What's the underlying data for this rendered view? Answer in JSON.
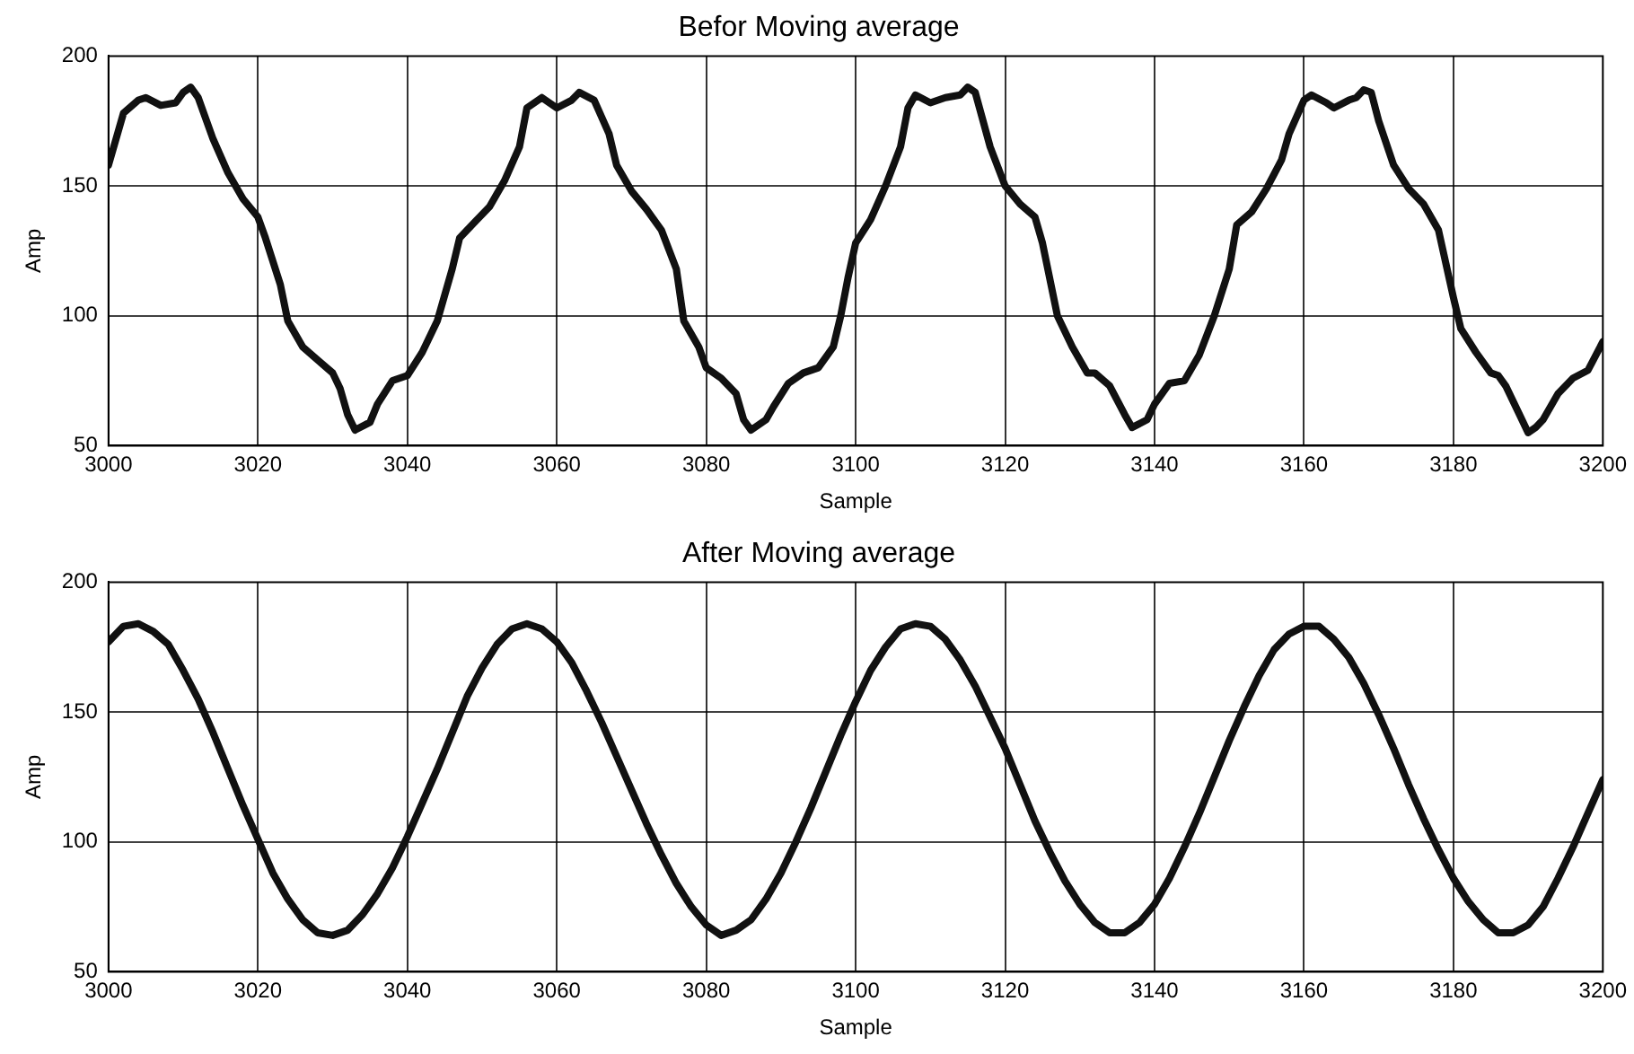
{
  "chart_data": [
    {
      "type": "line",
      "title": "Befor Moving average",
      "xlabel": "Sample",
      "ylabel": "Amp",
      "color": "#111111",
      "marker": "none",
      "line_style": "solid",
      "grid": true,
      "legend": false,
      "xlim": [
        3000,
        3200
      ],
      "xticks": [
        3000,
        3020,
        3040,
        3060,
        3080,
        3100,
        3120,
        3140,
        3160,
        3180,
        3200
      ],
      "ylim": [
        50,
        200
      ],
      "yticks": [
        50,
        100,
        150,
        200
      ],
      "x": [
        3000,
        3002,
        3004,
        3005,
        3007,
        3009,
        3010,
        3011,
        3012,
        3014,
        3016,
        3018,
        3020,
        3021,
        3023,
        3024,
        3026,
        3028,
        3030,
        3031,
        3032,
        3033,
        3035,
        3036,
        3038,
        3040,
        3042,
        3044,
        3046,
        3047,
        3049,
        3051,
        3053,
        3055,
        3056,
        3058,
        3060,
        3062,
        3063,
        3065,
        3067,
        3068,
        3070,
        3072,
        3074,
        3076,
        3077,
        3079,
        3080,
        3082,
        3084,
        3085,
        3086,
        3088,
        3089,
        3091,
        3093,
        3095,
        3097,
        3098,
        3099,
        3100,
        3102,
        3104,
        3106,
        3107,
        3108,
        3110,
        3112,
        3114,
        3115,
        3116,
        3118,
        3120,
        3122,
        3124,
        3125,
        3127,
        3129,
        3131,
        3132,
        3134,
        3136,
        3137,
        3139,
        3140,
        3142,
        3144,
        3146,
        3148,
        3150,
        3151,
        3153,
        3155,
        3157,
        3158,
        3160,
        3161,
        3163,
        3164,
        3166,
        3167,
        3168,
        3169,
        3170,
        3172,
        3174,
        3176,
        3178,
        3180,
        3181,
        3183,
        3185,
        3186,
        3187,
        3189,
        3190,
        3191,
        3192,
        3194,
        3196,
        3198,
        3200
      ],
      "values": [
        158,
        178,
        183,
        184,
        181,
        182,
        186,
        188,
        184,
        168,
        155,
        145,
        138,
        130,
        112,
        98,
        88,
        83,
        78,
        72,
        62,
        56,
        59,
        66,
        75,
        77,
        86,
        98,
        118,
        130,
        136,
        142,
        152,
        165,
        180,
        184,
        180,
        183,
        186,
        183,
        170,
        158,
        148,
        141,
        133,
        118,
        98,
        88,
        80,
        76,
        70,
        60,
        56,
        60,
        65,
        74,
        78,
        80,
        88,
        100,
        115,
        128,
        137,
        150,
        165,
        180,
        185,
        182,
        184,
        185,
        188,
        186,
        165,
        150,
        143,
        138,
        128,
        100,
        88,
        78,
        78,
        73,
        62,
        57,
        60,
        66,
        74,
        75,
        85,
        100,
        118,
        135,
        140,
        149,
        160,
        170,
        183,
        185,
        182,
        180,
        183,
        184,
        187,
        186,
        175,
        158,
        149,
        143,
        133,
        107,
        95,
        86,
        78,
        77,
        73,
        61,
        55,
        57,
        60,
        70,
        76,
        79,
        90
      ]
    },
    {
      "type": "line",
      "title": "After Moving average",
      "xlabel": "Sample",
      "ylabel": "Amp",
      "color": "#111111",
      "marker": "none",
      "line_style": "solid",
      "grid": true,
      "legend": false,
      "xlim": [
        3000,
        3200
      ],
      "xticks": [
        3000,
        3020,
        3040,
        3060,
        3080,
        3100,
        3120,
        3140,
        3160,
        3180,
        3200
      ],
      "ylim": [
        50,
        200
      ],
      "yticks": [
        50,
        100,
        150,
        200
      ],
      "x": [
        3000,
        3002,
        3004,
        3006,
        3008,
        3010,
        3012,
        3014,
        3016,
        3018,
        3020,
        3022,
        3024,
        3026,
        3028,
        3030,
        3032,
        3034,
        3036,
        3038,
        3040,
        3042,
        3044,
        3046,
        3048,
        3050,
        3052,
        3054,
        3056,
        3058,
        3060,
        3062,
        3064,
        3066,
        3068,
        3070,
        3072,
        3074,
        3076,
        3078,
        3080,
        3082,
        3084,
        3086,
        3088,
        3090,
        3092,
        3094,
        3096,
        3098,
        3100,
        3102,
        3104,
        3106,
        3108,
        3110,
        3112,
        3114,
        3116,
        3118,
        3120,
        3122,
        3124,
        3126,
        3128,
        3130,
        3132,
        3134,
        3136,
        3138,
        3140,
        3142,
        3144,
        3146,
        3148,
        3150,
        3152,
        3154,
        3156,
        3158,
        3160,
        3162,
        3164,
        3166,
        3168,
        3170,
        3172,
        3174,
        3176,
        3178,
        3180,
        3182,
        3184,
        3186,
        3188,
        3190,
        3192,
        3194,
        3196,
        3198,
        3200
      ],
      "values": [
        177,
        183,
        184,
        181,
        176,
        166,
        155,
        142,
        128,
        114,
        101,
        88,
        78,
        70,
        65,
        64,
        66,
        72,
        80,
        90,
        102,
        115,
        128,
        142,
        156,
        167,
        176,
        182,
        184,
        182,
        177,
        169,
        158,
        146,
        133,
        120,
        107,
        95,
        84,
        75,
        68,
        64,
        66,
        70,
        78,
        88,
        100,
        113,
        127,
        141,
        154,
        166,
        175,
        182,
        184,
        183,
        178,
        170,
        160,
        148,
        136,
        122,
        108,
        96,
        85,
        76,
        69,
        65,
        65,
        69,
        76,
        86,
        98,
        111,
        125,
        139,
        152,
        164,
        174,
        180,
        183,
        183,
        178,
        171,
        161,
        149,
        136,
        122,
        109,
        97,
        86,
        77,
        70,
        65,
        65,
        68,
        75,
        86,
        98,
        111,
        124
      ]
    }
  ]
}
